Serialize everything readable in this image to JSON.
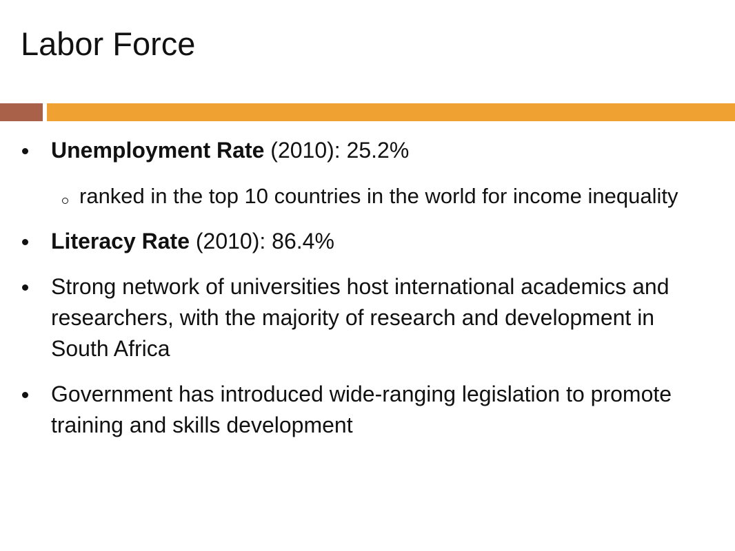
{
  "title": "Labor Force",
  "bullets": [
    {
      "bold": "Unemployment Rate",
      "text": "(2010): 25.2%",
      "sub": [
        "ranked in the top 10 countries in the world for income inequality"
      ]
    },
    {
      "bold": "Literacy Rate",
      "text": "(2010): 86.4%"
    },
    {
      "text": "Strong network of universities host international academics and researchers, with the majority of research and development in South Africa"
    },
    {
      "text": "Government has introduced wide-ranging legislation to promote training and skills development"
    }
  ]
}
